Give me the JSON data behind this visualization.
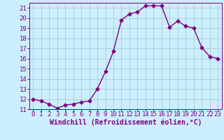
{
  "x": [
    0,
    1,
    2,
    3,
    4,
    5,
    6,
    7,
    8,
    9,
    10,
    11,
    12,
    13,
    14,
    15,
    16,
    17,
    18,
    19,
    20,
    21,
    22,
    23
  ],
  "y": [
    12.0,
    11.8,
    11.5,
    11.1,
    11.4,
    11.5,
    11.7,
    11.8,
    13.0,
    14.7,
    16.7,
    19.8,
    20.4,
    20.6,
    21.2,
    21.2,
    21.2,
    19.1,
    19.7,
    19.2,
    19.0,
    17.1,
    16.2,
    16.0
  ],
  "line_color": "#800080",
  "marker": "D",
  "marker_size": 2.5,
  "bg_color": "#cceeff",
  "grid_color": "#aad4d4",
  "xlabel": "Windchill (Refroidissement éolien,°C)",
  "ylim": [
    11,
    21.5
  ],
  "xlim": [
    -0.5,
    23.5
  ],
  "yticks": [
    11,
    12,
    13,
    14,
    15,
    16,
    17,
    18,
    19,
    20,
    21
  ],
  "xticks": [
    0,
    1,
    2,
    3,
    4,
    5,
    6,
    7,
    8,
    9,
    10,
    11,
    12,
    13,
    14,
    15,
    16,
    17,
    18,
    19,
    20,
    21,
    22,
    23
  ],
  "tick_color": "#800080",
  "label_color": "#800080",
  "font_size": 6.5,
  "xlabel_fontsize": 7,
  "linewidth": 1.0
}
